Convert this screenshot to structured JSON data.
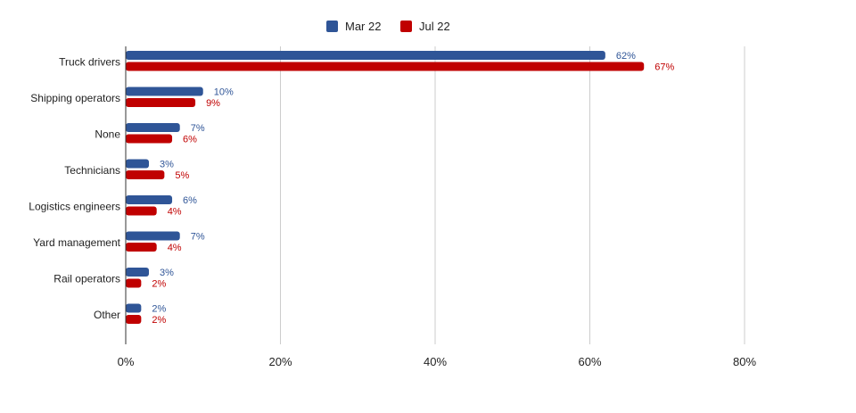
{
  "chart_data": {
    "type": "bar",
    "orientation": "horizontal",
    "title": "",
    "xlabel": "",
    "ylabel": "",
    "categories": [
      "Truck drivers",
      "Shipping operators",
      "None",
      "Technicians",
      "Logistics engineers",
      "Yard management",
      "Rail operators",
      "Other"
    ],
    "series": [
      {
        "name": "Mar 22",
        "color": "#2f5597",
        "values": [
          62,
          10,
          7,
          3,
          6,
          7,
          3,
          2
        ],
        "labels": [
          "62%",
          "10%",
          "7%",
          "3%",
          "6%",
          "7%",
          "3%",
          "2%"
        ]
      },
      {
        "name": "Jul 22",
        "color": "#c00000",
        "values": [
          67,
          9,
          6,
          5,
          4,
          4,
          2,
          2
        ],
        "labels": [
          "67%",
          "9%",
          "6%",
          "5%",
          "4%",
          "4%",
          "2%",
          "2%"
        ]
      }
    ],
    "xlim": [
      0,
      80
    ],
    "xticks": [
      0,
      20,
      40,
      60,
      80
    ],
    "xtick_labels": [
      "0%",
      "20%",
      "40%",
      "60%",
      "80%"
    ],
    "grid": "vertical",
    "legend_position": "top-center"
  }
}
